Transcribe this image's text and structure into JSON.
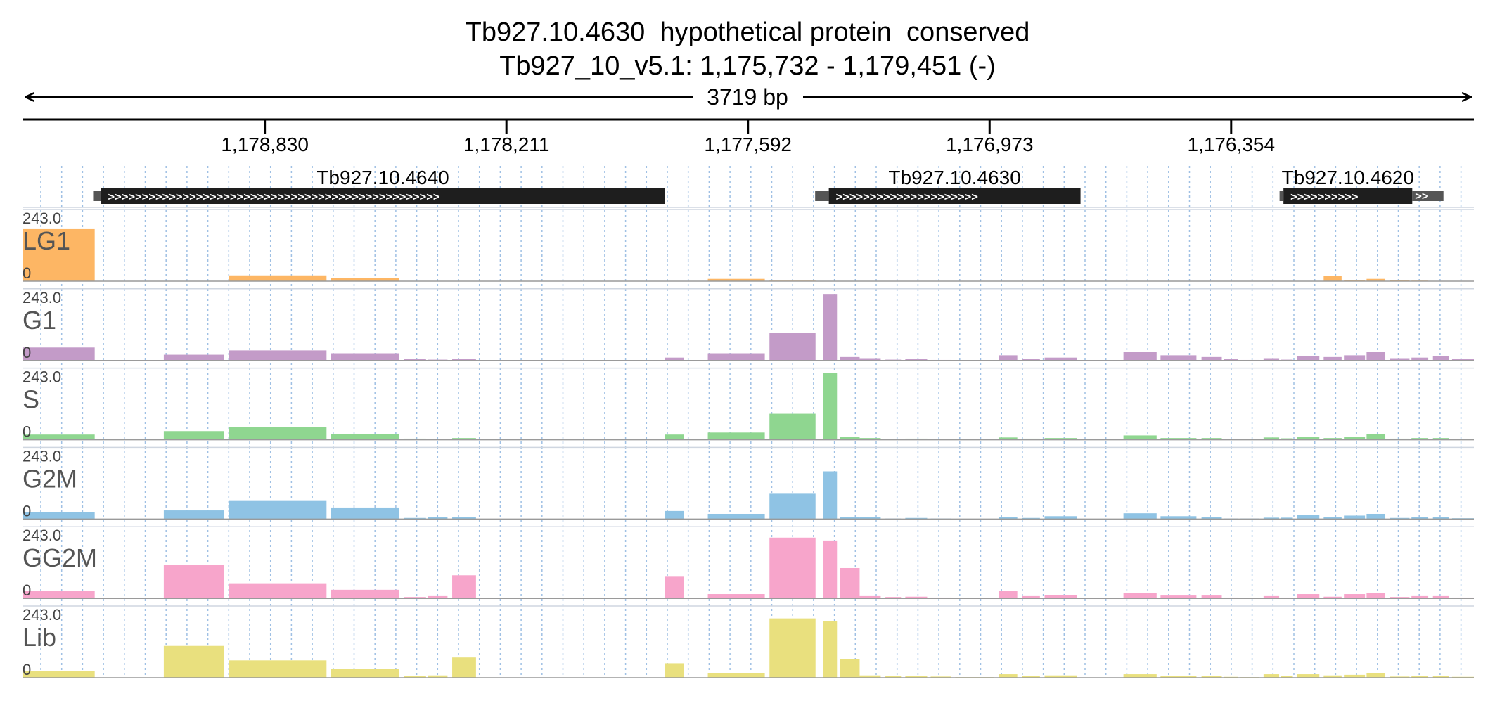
{
  "header": {
    "title_line1": "Tb927.10.4630  hypothetical protein  conserved",
    "title_line2": "Tb927_10_v5.1: 1,175,732 - 1,179,451 (-)"
  },
  "chart_data": {
    "type": "area",
    "span_label": "3719 bp",
    "region": {
      "chromosome": "Tb927_10_v5.1",
      "start": 1175732,
      "end": 1179451,
      "strand": "-"
    },
    "xlim": [
      1179451,
      1175732
    ],
    "x_ticks": [
      {
        "value": 1178830,
        "label": "1,178,830"
      },
      {
        "value": 1178211,
        "label": "1,178,211"
      },
      {
        "value": 1177592,
        "label": "1,177,592"
      },
      {
        "value": 1176973,
        "label": "1,176,973"
      },
      {
        "value": 1176354,
        "label": "1,176,354"
      }
    ],
    "genes": [
      {
        "name": "Tb927.10.4640",
        "utr_start": 1179270,
        "cds_start": 1179250,
        "cds_end": 1177805,
        "utr_end": 1177805
      },
      {
        "name": "Tb927.10.4630",
        "utr_start": 1177420,
        "cds_start": 1177385,
        "cds_end": 1176740,
        "utr_end": 1176740
      },
      {
        "name": "Tb927.10.4620",
        "utr_start": 1176230,
        "cds_start": 1176220,
        "cds_end": 1175890,
        "utr_end": 1175810
      }
    ],
    "ylim": [
      0,
      243.0
    ],
    "y_max_label": "243.0",
    "y_min_label": "0",
    "segments": [
      [
        1179451,
        1179266
      ],
      [
        1179196,
        1179145
      ],
      [
        1179089,
        1178935
      ],
      [
        1178923,
        1178672
      ],
      [
        1178660,
        1178486
      ],
      [
        1178474,
        1178417
      ],
      [
        1178413,
        1178362
      ],
      [
        1178350,
        1178289
      ],
      [
        1177805,
        1177757
      ],
      [
        1177695,
        1177549
      ],
      [
        1177537,
        1177419
      ],
      [
        1177399,
        1177364
      ],
      [
        1177357,
        1177306
      ],
      [
        1177306,
        1177252
      ],
      [
        1177240,
        1177200
      ],
      [
        1177189,
        1177133
      ],
      [
        1177124,
        1177072
      ],
      [
        1177061,
        1176963
      ],
      [
        1176950,
        1176902
      ],
      [
        1176890,
        1176844
      ],
      [
        1176832,
        1176750
      ],
      [
        1176630,
        1176545
      ],
      [
        1176535,
        1176443
      ],
      [
        1176430,
        1176378
      ],
      [
        1176373,
        1176337
      ],
      [
        1176330,
        1176282
      ],
      [
        1176271,
        1176231
      ],
      [
        1176226,
        1176196
      ],
      [
        1176185,
        1176128
      ],
      [
        1176117,
        1176071
      ],
      [
        1176065,
        1176011
      ],
      [
        1176007,
        1175959
      ],
      [
        1175948,
        1175897
      ],
      [
        1175892,
        1175849
      ],
      [
        1175837,
        1175796
      ],
      [
        1175788,
        1175732
      ]
    ],
    "series": [
      {
        "name": "LG1",
        "color": "#fdb664",
        "values": [
          180,
          0,
          0,
          20,
          10,
          0,
          0,
          0,
          0,
          8,
          2,
          0,
          0,
          0,
          0,
          0,
          0,
          0,
          0,
          0,
          0,
          0,
          0,
          0,
          0,
          0,
          0,
          0,
          0,
          18,
          4,
          8,
          3,
          2,
          0,
          0
        ]
      },
      {
        "name": "G1",
        "color": "#c39bc8",
        "values": [
          45,
          0,
          20,
          35,
          25,
          5,
          3,
          5,
          10,
          25,
          95,
          230,
          12,
          8,
          3,
          6,
          2,
          1,
          18,
          5,
          10,
          30,
          18,
          12,
          6,
          2,
          8,
          3,
          15,
          12,
          18,
          30,
          8,
          10,
          15,
          5
        ]
      },
      {
        "name": "S",
        "color": "#8fd690",
        "values": [
          18,
          0,
          30,
          45,
          20,
          4,
          3,
          6,
          18,
          25,
          90,
          230,
          10,
          6,
          2,
          4,
          2,
          1,
          8,
          4,
          6,
          15,
          6,
          6,
          2,
          2,
          8,
          5,
          10,
          6,
          10,
          20,
          4,
          6,
          6,
          3
        ]
      },
      {
        "name": "G2M",
        "color": "#8fc3e4",
        "values": [
          25,
          0,
          30,
          65,
          40,
          4,
          6,
          8,
          28,
          18,
          90,
          165,
          8,
          6,
          2,
          4,
          2,
          1,
          8,
          4,
          10,
          20,
          10,
          8,
          2,
          2,
          5,
          5,
          15,
          8,
          12,
          18,
          4,
          6,
          6,
          3
        ]
      },
      {
        "name": "GG2M",
        "color": "#f7a5cb",
        "values": [
          25,
          0,
          115,
          50,
          30,
          5,
          8,
          80,
          75,
          15,
          210,
          200,
          105,
          8,
          5,
          6,
          3,
          2,
          25,
          8,
          12,
          18,
          10,
          10,
          3,
          2,
          8,
          3,
          15,
          6,
          15,
          18,
          5,
          8,
          8,
          3
        ]
      },
      {
        "name": "Lib",
        "color": "#e9e07e",
        "values": [
          22,
          0,
          110,
          60,
          30,
          5,
          8,
          70,
          50,
          15,
          205,
          195,
          65,
          8,
          5,
          6,
          4,
          2,
          12,
          6,
          8,
          12,
          6,
          6,
          3,
          2,
          12,
          5,
          12,
          8,
          10,
          15,
          4,
          6,
          6,
          3
        ]
      }
    ]
  }
}
